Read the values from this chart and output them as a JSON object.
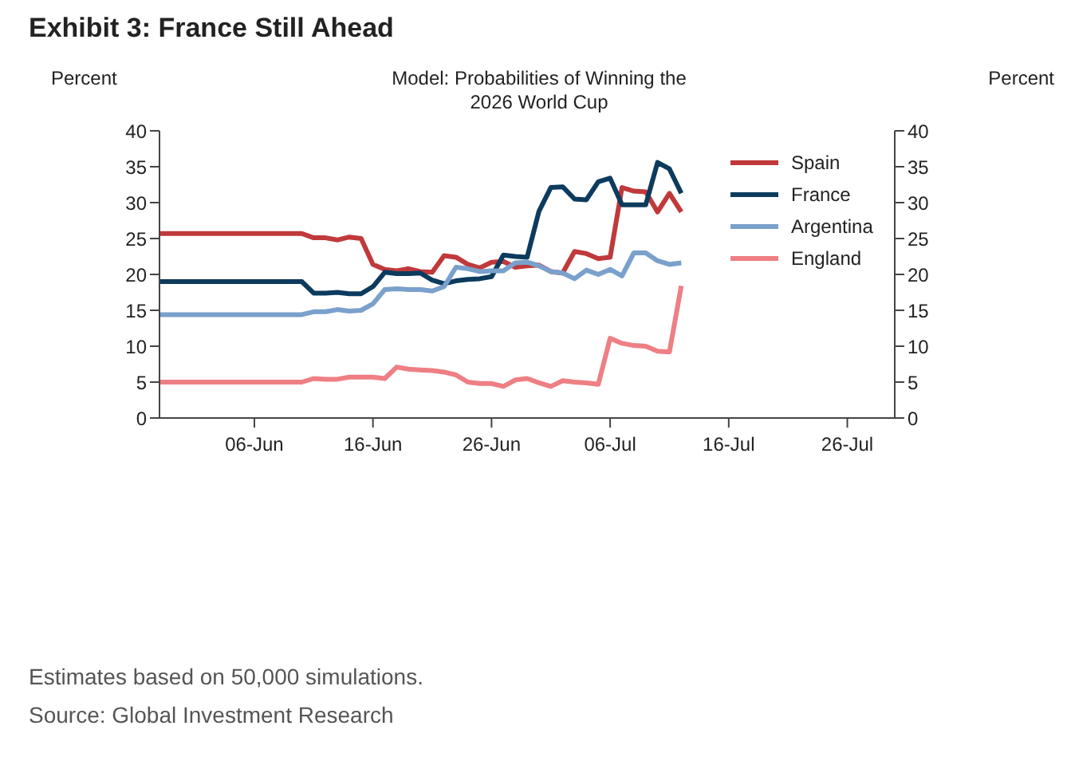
{
  "chart_data": {
    "type": "line",
    "title": "Exhibit 3: France Still Ahead",
    "subtitle": "Model: Probabilities of Winning the 2026 World Cup",
    "ylabel": "Percent",
    "y2label": "Percent",
    "x": [
      "2026-05-29",
      "2026-06-10",
      "2026-06-11",
      "2026-06-12",
      "2026-06-13",
      "2026-06-14",
      "2026-06-15",
      "2026-06-16",
      "2026-06-17",
      "2026-06-18",
      "2026-06-19",
      "2026-06-20",
      "2026-06-21",
      "2026-06-22",
      "2026-06-23",
      "2026-06-24",
      "2026-06-25",
      "2026-06-26",
      "2026-06-27",
      "2026-06-28",
      "2026-06-29",
      "2026-06-30",
      "2026-07-01",
      "2026-07-02",
      "2026-07-03",
      "2026-07-04",
      "2026-07-05",
      "2026-07-06",
      "2026-07-07",
      "2026-07-08",
      "2026-07-09",
      "2026-07-10",
      "2026-07-11",
      "2026-07-12"
    ],
    "series": [
      {
        "name": "Spain",
        "color": "#c0393b",
        "values": [
          25.7,
          25.7,
          25.1,
          25.1,
          24.8,
          25.2,
          25.0,
          21.4,
          20.7,
          20.5,
          20.8,
          20.4,
          20.3,
          22.6,
          22.4,
          21.4,
          20.9,
          21.7,
          21.8,
          21.0,
          21.2,
          21.3,
          20.4,
          20.2,
          23.2,
          22.9,
          22.2,
          22.4,
          32.1,
          31.6,
          31.5,
          28.7,
          31.3,
          28.7
        ]
      },
      {
        "name": "France",
        "color": "#0d3b5e",
        "values": [
          19.0,
          19.0,
          17.4,
          17.4,
          17.5,
          17.3,
          17.3,
          18.3,
          20.3,
          20.1,
          20.1,
          20.2,
          19.2,
          18.7,
          19.1,
          19.3,
          19.4,
          19.7,
          22.7,
          22.5,
          22.4,
          28.8,
          32.1,
          32.2,
          30.5,
          30.4,
          32.9,
          33.4,
          29.7,
          29.7,
          29.7,
          35.6,
          34.7,
          31.3
        ]
      },
      {
        "name": "Argentina",
        "color": "#7aa0cc",
        "values": [
          14.4,
          14.4,
          14.8,
          14.8,
          15.1,
          14.9,
          15.0,
          15.9,
          17.9,
          18.0,
          17.9,
          17.9,
          17.7,
          18.3,
          21.0,
          20.8,
          20.4,
          20.5,
          20.5,
          21.6,
          21.7,
          21.2,
          20.4,
          20.2,
          19.4,
          20.6,
          20.0,
          20.7,
          19.8,
          23.0,
          23.0,
          21.9,
          21.4,
          21.6
        ]
      },
      {
        "name": "England",
        "color": "#ee7f84",
        "values": [
          5.0,
          5.0,
          5.5,
          5.4,
          5.4,
          5.7,
          5.7,
          5.7,
          5.5,
          7.1,
          6.8,
          6.7,
          6.6,
          6.4,
          6.0,
          5.0,
          4.8,
          4.8,
          4.4,
          5.3,
          5.5,
          4.9,
          4.4,
          5.2,
          5.0,
          4.9,
          4.7,
          11.1,
          10.4,
          10.1,
          10.0,
          9.3,
          9.2,
          18.4
        ]
      }
    ],
    "xlim": [
      "2026-05-29",
      "2026-07-30"
    ],
    "xticks": [
      {
        "value": "2026-06-06",
        "label": "06-Jun"
      },
      {
        "value": "2026-06-16",
        "label": "16-Jun"
      },
      {
        "value": "2026-06-26",
        "label": "26-Jun"
      },
      {
        "value": "2026-07-06",
        "label": "06-Jul"
      },
      {
        "value": "2026-07-16",
        "label": "16-Jul"
      },
      {
        "value": "2026-07-26",
        "label": "26-Jul"
      }
    ],
    "ylim": [
      0,
      40
    ],
    "yticks": [
      0,
      5,
      10,
      15,
      20,
      25,
      30,
      35,
      40
    ],
    "y2lim": [
      0,
      40
    ],
    "y2ticks": [
      0,
      5,
      10,
      15,
      20,
      25,
      30,
      35,
      40
    ],
    "legend": "top right",
    "marker": "none",
    "line_style": "solid",
    "annotations": [
      "Estimates based on 50,000 simulations.",
      "Source: Global Investment Research"
    ]
  }
}
